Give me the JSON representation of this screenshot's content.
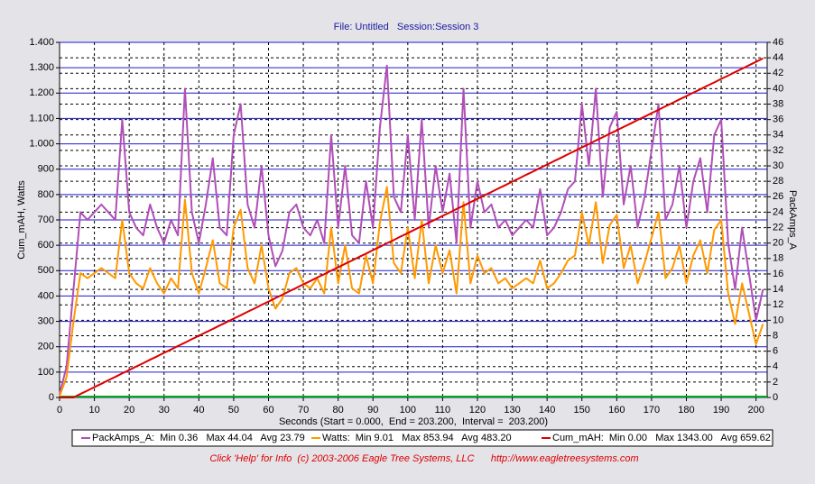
{
  "chart_data": {
    "type": "line",
    "title": "File: Untitled   Session:Session 3",
    "x_label": "Seconds (Start = 0.000,  End = 203.200,  Interval =  203.200)",
    "y_label": "Cum_mAH, Watts",
    "y2_label": "PackAmps_A",
    "footer": "Click 'Help' for Info  (c) 2003-2006 Eagle Tree Systems, LLC      http://www.eagletreesystems.com",
    "xlim": [
      0,
      203.2
    ],
    "xticks": [
      0,
      10,
      20,
      30,
      40,
      50,
      60,
      70,
      80,
      90,
      100,
      110,
      120,
      130,
      140,
      150,
      160,
      170,
      180,
      190,
      200
    ],
    "ylim": [
      0,
      1400
    ],
    "yticks": [
      0,
      100,
      200,
      300,
      400,
      500,
      600,
      700,
      800,
      900,
      {
        "value": 1000,
        "label": "1.000"
      },
      {
        "value": 1100,
        "label": "1.100"
      },
      {
        "value": 1200,
        "label": "1.200"
      },
      {
        "value": 1300,
        "label": "1.300"
      },
      {
        "value": 1400,
        "label": "1.400"
      }
    ],
    "y2lim": [
      0,
      46
    ],
    "y2ticks": [
      0,
      2,
      4,
      6,
      8,
      10,
      12,
      14,
      16,
      18,
      20,
      22,
      24,
      26,
      28,
      30,
      32,
      34,
      36,
      38,
      40,
      42,
      44,
      46
    ],
    "grid": true,
    "legend": "bottom",
    "x": [
      0,
      2,
      4,
      6,
      8,
      10,
      12,
      14,
      16,
      18,
      20,
      22,
      24,
      26,
      28,
      30,
      32,
      34,
      36,
      38,
      40,
      42,
      44,
      46,
      48,
      50,
      52,
      54,
      56,
      58,
      60,
      62,
      64,
      66,
      68,
      70,
      72,
      74,
      76,
      78,
      80,
      82,
      84,
      86,
      88,
      90,
      92,
      94,
      96,
      98,
      100,
      102,
      104,
      106,
      108,
      110,
      112,
      114,
      116,
      118,
      120,
      122,
      124,
      126,
      128,
      130,
      132,
      134,
      136,
      138,
      140,
      142,
      144,
      146,
      148,
      150,
      152,
      154,
      156,
      158,
      160,
      162,
      164,
      166,
      168,
      170,
      172,
      174,
      176,
      178,
      180,
      182,
      184,
      186,
      188,
      190,
      192,
      194,
      196,
      198,
      200,
      202
    ],
    "series": [
      {
        "name": "PackAmps_A:",
        "stats": "Min 0.36   Max 44.04   Avg 23.79",
        "color": "#b04fb8",
        "axis": "y2",
        "values": [
          0.4,
          4,
          14,
          24,
          23,
          24,
          25,
          24,
          23,
          36,
          24,
          22,
          21,
          25,
          22,
          20,
          23,
          21,
          40,
          24,
          20,
          25,
          31,
          22,
          21,
          34,
          38,
          25,
          22,
          30,
          21,
          17,
          19,
          24,
          25,
          22,
          21,
          23,
          20,
          34,
          22,
          30,
          21,
          20,
          28,
          22,
          35,
          43,
          26,
          24,
          34,
          23,
          36,
          22,
          30,
          24,
          29,
          20,
          40,
          22,
          28,
          24,
          25,
          22,
          23,
          21,
          22,
          23,
          22,
          27,
          21,
          22,
          24,
          27,
          28,
          38,
          30,
          40,
          26,
          35,
          37,
          25,
          30,
          22,
          26,
          32,
          38,
          23,
          25,
          30,
          22,
          28,
          31,
          24,
          34,
          36,
          20,
          14,
          22,
          16,
          10,
          14
        ]
      },
      {
        "name": "Watts:",
        "stats": "Min 9.01   Max 853.94   Avg 483.20",
        "color": "#ff9900",
        "values": [
          5,
          80,
          300,
          490,
          470,
          490,
          510,
          490,
          470,
          700,
          490,
          450,
          430,
          510,
          450,
          410,
          470,
          430,
          780,
          490,
          410,
          510,
          620,
          450,
          430,
          670,
          740,
          510,
          450,
          600,
          430,
          350,
          390,
          490,
          510,
          450,
          430,
          470,
          410,
          670,
          450,
          600,
          430,
          410,
          560,
          450,
          690,
          830,
          530,
          490,
          670,
          470,
          700,
          450,
          600,
          490,
          580,
          410,
          770,
          450,
          560,
          490,
          510,
          450,
          470,
          430,
          450,
          470,
          450,
          540,
          430,
          450,
          490,
          540,
          560,
          730,
          600,
          770,
          530,
          680,
          720,
          510,
          600,
          450,
          530,
          630,
          730,
          470,
          510,
          600,
          450,
          560,
          620,
          490,
          660,
          700,
          410,
          290,
          450,
          330,
          210,
          290
        ]
      },
      {
        "name": "Cum_mAH:",
        "stats": "Min 0.00   Max 1343.00   Avg 659.62",
        "color": "#dd0000",
        "values": [
          0,
          0,
          0,
          14,
          27,
          41,
          54,
          68,
          81,
          95,
          108,
          122,
          135,
          149,
          162,
          176,
          189,
          203,
          216,
          230,
          243,
          257,
          270,
          284,
          297,
          311,
          324,
          338,
          351,
          365,
          378,
          392,
          405,
          419,
          432,
          446,
          459,
          473,
          486,
          500,
          513,
          527,
          540,
          554,
          567,
          581,
          594,
          608,
          621,
          635,
          648,
          662,
          675,
          689,
          702,
          716,
          729,
          743,
          756,
          770,
          783,
          797,
          810,
          824,
          837,
          851,
          864,
          878,
          891,
          905,
          918,
          932,
          945,
          959,
          972,
          986,
          999,
          1013,
          1026,
          1040,
          1053,
          1067,
          1080,
          1094,
          1107,
          1121,
          1134,
          1148,
          1161,
          1175,
          1188,
          1202,
          1215,
          1229,
          1242,
          1256,
          1269,
          1283,
          1296,
          1310,
          1323,
          1337
        ]
      }
    ]
  }
}
